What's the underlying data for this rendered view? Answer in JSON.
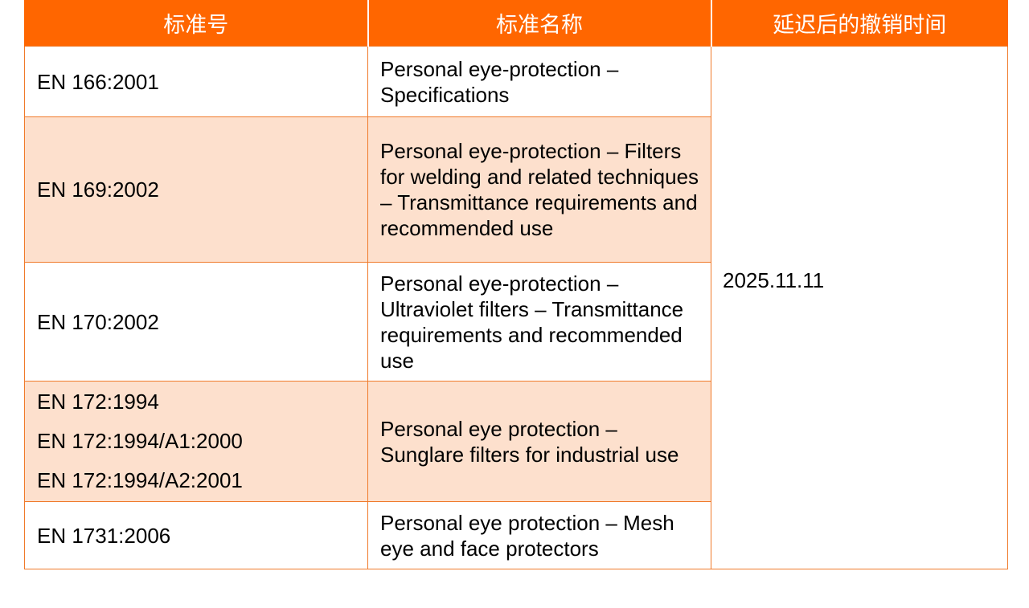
{
  "table": {
    "headers": [
      "标准号",
      "标准名称",
      "延迟后的撤销时间"
    ],
    "revocation_date": "2025.11.11",
    "rows": [
      {
        "codes": [
          "EN 166:2001"
        ],
        "name": "Personal eye-protection – Specifications"
      },
      {
        "codes": [
          "EN 169:2002"
        ],
        "name": "Personal eye-protection – Filters for welding and related techniques – Transmittance requirements and recommended use"
      },
      {
        "codes": [
          "EN 170:2002"
        ],
        "name": "Personal eye-protection – Ultraviolet filters – Transmittance requirements and recommended use"
      },
      {
        "codes": [
          "EN 172:1994",
          "EN 172:1994/A1:2000",
          "EN 172:1994/A2:2001"
        ],
        "name": "Personal eye protection – Sunglare filters for industrial use"
      },
      {
        "codes": [
          "EN 1731:2006"
        ],
        "name": "Personal eye protection – Mesh eye and face protectors"
      }
    ]
  },
  "colors": {
    "header_bg": "#ff6600",
    "header_text": "#ffffff",
    "stripe_bg": "#fde0cd",
    "border": "#f07a2a"
  }
}
